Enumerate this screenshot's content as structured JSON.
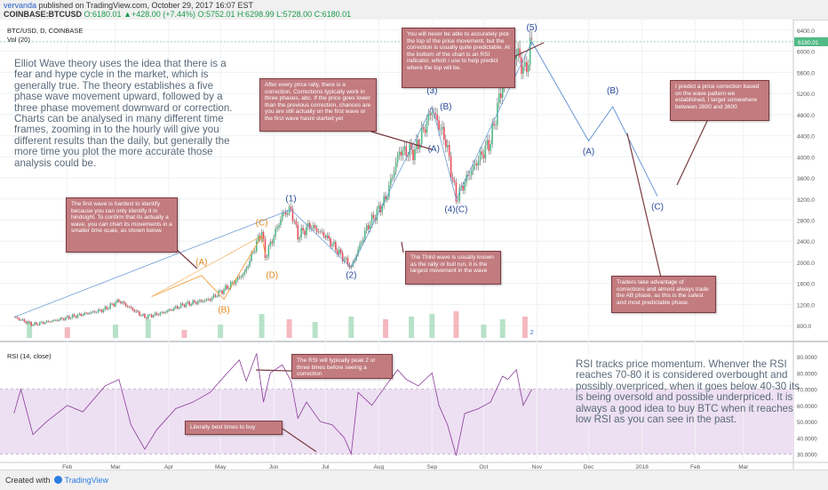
{
  "header": {
    "user": "vervanda",
    "published_text": "published on TradingView.com, October 29, 2017 16:07 EST",
    "symbol": "COINBASE:BTCUSD",
    "ohlc": "O:6180.01 ▲+428.00 (+7.44%) O:5752.01 H:6298.99 L:5728.00 C:6180.01"
  },
  "plot": {
    "title": "BTC/USD, D, COINBASE",
    "vol_label": "Vol (20)",
    "rsi_label": "RSI (14, close)",
    "last_price": "6180.01",
    "extra_marker": "2"
  },
  "footer": {
    "created_with": "Created with",
    "brand": "TradingView"
  },
  "text_blocks": {
    "elliott": "Elliot Wave theory uses the idea that there is a fear and hype cycle in the market, which is generally true. The theory establishes a five phase wave movement upward, followed by a three phase movement downward or correction. Charts can be analysed in many different time frames, zooming in to the hourly will give you different results than the daily, but generally the more time you plot the more accurate those analysis could be.",
    "rsi_explain": "RSI tracks price momentum. Whenver the RSI reaches 70-80 it is considered overbought and possibly overpriced, when it goes below 40-30 its is being oversold and possible underpriced. It is always a good idea to buy BTC when it reaches low RSI as you can see in the past."
  },
  "notes": [
    {
      "id": "note-first-wave",
      "text": "The first wave is hardest to identify because you can only identify it in hindsight. To confirm that its actually a wave, you can chart its movements in a smaller time scale, as shown below"
    },
    {
      "id": "note-correction",
      "text": "After every price rally, there is a correction. Corrections typically work in three phases, abc. If the price goes lower than the previous correction, chances are you are still actually on the first wave or the first wave hasnt started yet"
    },
    {
      "id": "note-top",
      "text": "You will never be able to accurately pick the top of the price movement, but the correction is usually quite predictable. At the bottom of the chart is an RSI indicator, which i use to help predict where the top will be."
    },
    {
      "id": "note-target",
      "text": "I predict a price correction based on the wave pattern we established, I target somewhere between 2800 and 3600"
    },
    {
      "id": "note-third-wave",
      "text": "The Third wave is usually known as the rally or bull run, it is the largest movement in the wave"
    },
    {
      "id": "note-traders",
      "text": "Traders take advantage of corrections and almost always trade the AB phase, as this is the safest and most predictable phase."
    },
    {
      "id": "note-rsi-peak",
      "text": "The RSI will typically peak 2 or three times before seeing a correction"
    },
    {
      "id": "note-best-times",
      "text": "Literally best times to buy"
    }
  ],
  "chart_data": {
    "type": "line",
    "title": "BTC/USD, D, COINBASE",
    "x_ticks": [
      "Feb",
      "Mar",
      "Apr",
      "May",
      "Jun",
      "Jul",
      "Aug",
      "Sep",
      "Oct",
      "Nov",
      "Dec",
      "2018",
      "Feb",
      "Mar"
    ],
    "price_axis": {
      "ticks": [
        800,
        1200,
        1600,
        2000,
        2400,
        2800,
        3200,
        3600,
        4000,
        4400,
        4800,
        5200,
        5600,
        6000,
        6400
      ],
      "ylim": [
        600,
        6500
      ],
      "scale": "linear"
    },
    "rsi_axis": {
      "ticks": [
        30,
        40,
        50,
        60,
        70,
        80,
        90
      ],
      "labels": [
        "30.0000",
        "40.0000",
        "50.0000",
        "60.0000",
        "70.0000",
        "80.0000",
        "90.0000"
      ],
      "ylim": [
        27,
        95
      ],
      "band": [
        30,
        70
      ]
    },
    "price_series": [
      {
        "date": "2017-01-01",
        "close": 960
      },
      {
        "date": "2017-01-12",
        "close": 820
      },
      {
        "date": "2017-01-25",
        "close": 900
      },
      {
        "date": "2017-02-08",
        "close": 1000
      },
      {
        "date": "2017-02-22",
        "close": 1100
      },
      {
        "date": "2017-03-03",
        "close": 1270
      },
      {
        "date": "2017-03-18",
        "close": 960
      },
      {
        "date": "2017-03-28",
        "close": 1040
      },
      {
        "date": "2017-04-10",
        "close": 1200
      },
      {
        "date": "2017-04-25",
        "close": 1300
      },
      {
        "date": "2017-05-06",
        "close": 1550
      },
      {
        "date": "2017-05-15",
        "close": 1800
      },
      {
        "date": "2017-05-25",
        "close": 2600
      },
      {
        "date": "2017-05-27",
        "close": 2100
      },
      {
        "date": "2017-06-06",
        "close": 2900
      },
      {
        "date": "2017-06-11",
        "close": 3000
      },
      {
        "date": "2017-06-15",
        "close": 2500
      },
      {
        "date": "2017-06-22",
        "close": 2700
      },
      {
        "date": "2017-07-01",
        "close": 2500
      },
      {
        "date": "2017-07-16",
        "close": 1900
      },
      {
        "date": "2017-07-25",
        "close": 2650
      },
      {
        "date": "2017-08-05",
        "close": 3200
      },
      {
        "date": "2017-08-13",
        "close": 4100
      },
      {
        "date": "2017-08-22",
        "close": 4100
      },
      {
        "date": "2017-09-01",
        "close": 4900
      },
      {
        "date": "2017-09-09",
        "close": 4300
      },
      {
        "date": "2017-09-15",
        "close": 3200
      },
      {
        "date": "2017-09-22",
        "close": 3650
      },
      {
        "date": "2017-10-05",
        "close": 4300
      },
      {
        "date": "2017-10-12",
        "close": 5400
      },
      {
        "date": "2017-10-20",
        "close": 6000
      },
      {
        "date": "2017-10-25",
        "close": 5600
      },
      {
        "date": "2017-10-29",
        "close": 6180
      }
    ],
    "volume_series": [
      {
        "date": "2017-01-10",
        "v": 6
      },
      {
        "date": "2017-02-01",
        "v": 4
      },
      {
        "date": "2017-03-01",
        "v": 5
      },
      {
        "date": "2017-03-20",
        "v": 7
      },
      {
        "date": "2017-04-10",
        "v": 3
      },
      {
        "date": "2017-05-01",
        "v": 5
      },
      {
        "date": "2017-05-25",
        "v": 9
      },
      {
        "date": "2017-06-10",
        "v": 7
      },
      {
        "date": "2017-06-25",
        "v": 6
      },
      {
        "date": "2017-07-16",
        "v": 8
      },
      {
        "date": "2017-08-05",
        "v": 7
      },
      {
        "date": "2017-08-20",
        "v": 8
      },
      {
        "date": "2017-09-01",
        "v": 9
      },
      {
        "date": "2017-09-15",
        "v": 10
      },
      {
        "date": "2017-10-01",
        "v": 5
      },
      {
        "date": "2017-10-12",
        "v": 7
      },
      {
        "date": "2017-10-25",
        "v": 8
      }
    ],
    "rsi_series": [
      {
        "date": "2017-01-01",
        "v": 55
      },
      {
        "date": "2017-01-05",
        "v": 70
      },
      {
        "date": "2017-01-12",
        "v": 42
      },
      {
        "date": "2017-01-20",
        "v": 50
      },
      {
        "date": "2017-02-01",
        "v": 60
      },
      {
        "date": "2017-02-10",
        "v": 56
      },
      {
        "date": "2017-02-23",
        "v": 72
      },
      {
        "date": "2017-03-03",
        "v": 76
      },
      {
        "date": "2017-03-10",
        "v": 48
      },
      {
        "date": "2017-03-18",
        "v": 33
      },
      {
        "date": "2017-03-25",
        "v": 45
      },
      {
        "date": "2017-04-05",
        "v": 58
      },
      {
        "date": "2017-04-15",
        "v": 62
      },
      {
        "date": "2017-04-25",
        "v": 68
      },
      {
        "date": "2017-05-05",
        "v": 80
      },
      {
        "date": "2017-05-12",
        "v": 88
      },
      {
        "date": "2017-05-16",
        "v": 75
      },
      {
        "date": "2017-05-22",
        "v": 92
      },
      {
        "date": "2017-05-26",
        "v": 62
      },
      {
        "date": "2017-05-30",
        "v": 80
      },
      {
        "date": "2017-06-06",
        "v": 85
      },
      {
        "date": "2017-06-11",
        "v": 75
      },
      {
        "date": "2017-06-15",
        "v": 52
      },
      {
        "date": "2017-06-20",
        "v": 62
      },
      {
        "date": "2017-06-28",
        "v": 50
      },
      {
        "date": "2017-07-05",
        "v": 48
      },
      {
        "date": "2017-07-12",
        "v": 40
      },
      {
        "date": "2017-07-16",
        "v": 30
      },
      {
        "date": "2017-07-20",
        "v": 68
      },
      {
        "date": "2017-07-28",
        "v": 60
      },
      {
        "date": "2017-08-05",
        "v": 72
      },
      {
        "date": "2017-08-12",
        "v": 82
      },
      {
        "date": "2017-08-17",
        "v": 76
      },
      {
        "date": "2017-08-24",
        "v": 72
      },
      {
        "date": "2017-09-01",
        "v": 80
      },
      {
        "date": "2017-09-05",
        "v": 60
      },
      {
        "date": "2017-09-10",
        "v": 48
      },
      {
        "date": "2017-09-15",
        "v": 29
      },
      {
        "date": "2017-09-20",
        "v": 55
      },
      {
        "date": "2017-09-28",
        "v": 58
      },
      {
        "date": "2017-10-05",
        "v": 62
      },
      {
        "date": "2017-10-12",
        "v": 78
      },
      {
        "date": "2017-10-15",
        "v": 76
      },
      {
        "date": "2017-10-20",
        "v": 82
      },
      {
        "date": "2017-10-24",
        "v": 60
      },
      {
        "date": "2017-10-29",
        "v": 70
      }
    ],
    "projection": [
      {
        "date": "2017-10-29",
        "price": 6180
      },
      {
        "date": "2017-12-01",
        "price": 4300
      },
      {
        "date": "2017-12-15",
        "price": 4950
      },
      {
        "date": "2018-01-10",
        "price": 3250
      }
    ],
    "subwave": [
      {
        "date": "2017-03-22",
        "price": 1350
      },
      {
        "date": "2017-04-20",
        "price": 1750
      },
      {
        "date": "2017-05-03",
        "price": 1300
      },
      {
        "date": "2017-05-25",
        "price": 2500
      },
      {
        "date": "2017-05-27",
        "price": 2150
      }
    ],
    "wave_labels": [
      {
        "text": "(1)",
        "date": "2017-06-11",
        "price": 3150
      },
      {
        "text": "(2)",
        "date": "2017-07-16",
        "price": 1700
      },
      {
        "text": "(3)",
        "date": "2017-09-01",
        "price": 5200
      },
      {
        "text": "(4)(C)",
        "date": "2017-09-15",
        "price": 2950
      },
      {
        "text": "(5)",
        "date": "2017-10-29",
        "price": 6400
      },
      {
        "text": "(A)",
        "date": "2017-09-02",
        "price": 4100
      },
      {
        "text": "(B)",
        "date": "2017-09-09",
        "price": 4900
      },
      {
        "text": "(A)",
        "date": "2017-12-01",
        "price": 4050
      },
      {
        "text": "(B)",
        "date": "2017-12-15",
        "price": 5200
      },
      {
        "text": "(C)",
        "date": "2018-01-10",
        "price": 3000
      },
      {
        "text": "(A)",
        "date": "2017-04-20",
        "price": 1950
      },
      {
        "text": "(B)",
        "date": "2017-05-03",
        "price": 1050
      },
      {
        "text": "(C)",
        "date": "2017-05-25",
        "price": 2700
      },
      {
        "text": "(D)",
        "date": "2017-05-31",
        "price": 1700
      }
    ],
    "colors": {
      "up": "#53b987",
      "down": "#eb4d5c",
      "price_line": "#3c3c3c",
      "projection": "#5b8fd1",
      "subwave": "#f0a040",
      "wave_label": "#2a4a9a",
      "rsi_line": "#8a3a9a",
      "rsi_band": "#ede0f2",
      "note_bg": "#c27b7f"
    }
  }
}
